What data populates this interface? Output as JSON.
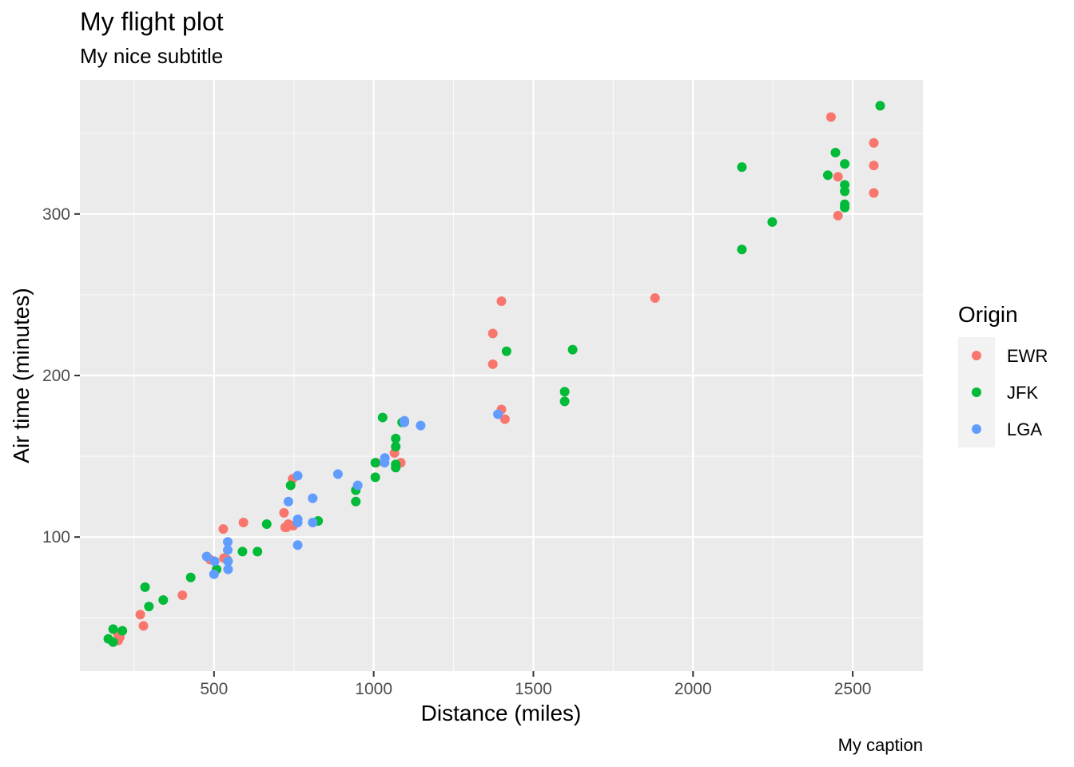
{
  "chart_data": {
    "type": "scatter",
    "title": "My flight plot",
    "subtitle": "My nice subtitle",
    "caption": "My caption",
    "xlabel": "Distance (miles)",
    "ylabel": "Air time (minutes)",
    "xlim": [
      80,
      2720
    ],
    "ylim": [
      17,
      383
    ],
    "x_ticks": [
      500,
      1000,
      1500,
      2000,
      2500
    ],
    "x_tick_labels": [
      "500",
      "1000",
      "1500",
      "2000",
      "2500"
    ],
    "y_ticks": [
      100,
      200,
      300
    ],
    "y_tick_labels": [
      "100",
      "200",
      "300"
    ],
    "grid": true,
    "panel_background": "#ebebeb",
    "legend": {
      "title": "Origin",
      "position": "right"
    },
    "series": [
      {
        "name": "EWR",
        "color": "#f8766d",
        "points": [
          [
            2432,
            360
          ],
          [
            2566,
            344
          ],
          [
            2566,
            330
          ],
          [
            2454,
            323
          ],
          [
            2566,
            313
          ],
          [
            2454,
            299
          ],
          [
            1881,
            248
          ],
          [
            1400,
            246
          ],
          [
            1373,
            226
          ],
          [
            1373,
            207
          ],
          [
            1400,
            179
          ],
          [
            1411,
            173
          ],
          [
            746,
            136
          ],
          [
            1065,
            152
          ],
          [
            1085,
            146
          ],
          [
            1008,
            146
          ],
          [
            719,
            115
          ],
          [
            733,
            108
          ],
          [
            723,
            106
          ],
          [
            748,
            107
          ],
          [
            727,
            106
          ],
          [
            592,
            109
          ],
          [
            529,
            105
          ],
          [
            541,
            86
          ],
          [
            531,
            87
          ],
          [
            488,
            86
          ],
          [
            401,
            64
          ],
          [
            269,
            52
          ],
          [
            279,
            45
          ],
          [
            199,
            40
          ],
          [
            205,
            38
          ],
          [
            200,
            36
          ]
        ]
      },
      {
        "name": "JFK",
        "color": "#00ba38",
        "points": [
          [
            2586,
            367
          ],
          [
            2446,
            338
          ],
          [
            2153,
            329
          ],
          [
            2475,
            331
          ],
          [
            2422,
            324
          ],
          [
            2475,
            318
          ],
          [
            2475,
            314
          ],
          [
            2475,
            306
          ],
          [
            2475,
            304
          ],
          [
            2248,
            295
          ],
          [
            2153,
            278
          ],
          [
            1598,
            190
          ],
          [
            1598,
            184
          ],
          [
            1623,
            216
          ],
          [
            1416,
            215
          ],
          [
            1028,
            174
          ],
          [
            1089,
            171
          ],
          [
            1069,
            161
          ],
          [
            1069,
            156
          ],
          [
            1069,
            145
          ],
          [
            1069,
            143
          ],
          [
            1005,
            146
          ],
          [
            1005,
            137
          ],
          [
            944,
            129
          ],
          [
            944,
            122
          ],
          [
            740,
            132
          ],
          [
            826,
            110
          ],
          [
            665,
            108
          ],
          [
            589,
            91
          ],
          [
            636,
            91
          ],
          [
            508,
            80
          ],
          [
            427,
            75
          ],
          [
            284,
            69
          ],
          [
            341,
            61
          ],
          [
            296,
            57
          ],
          [
            213,
            42
          ],
          [
            184,
            43
          ],
          [
            184,
            35
          ],
          [
            169,
            37
          ]
        ]
      },
      {
        "name": "LGA",
        "color": "#619cff",
        "points": [
          [
            1096,
            172
          ],
          [
            1147,
            169
          ],
          [
            1389,
            176
          ],
          [
            762,
            138
          ],
          [
            888,
            139
          ],
          [
            950,
            132
          ],
          [
            1034,
            146
          ],
          [
            1035,
            149
          ],
          [
            1096,
            171
          ],
          [
            733,
            122
          ],
          [
            809,
            124
          ],
          [
            809,
            109
          ],
          [
            762,
            111
          ],
          [
            762,
            109
          ],
          [
            543,
            97
          ],
          [
            762,
            95
          ],
          [
            543,
            92
          ],
          [
            477,
            88
          ],
          [
            502,
            85
          ],
          [
            544,
            85
          ],
          [
            544,
            80
          ],
          [
            500,
            77
          ]
        ]
      }
    ]
  }
}
